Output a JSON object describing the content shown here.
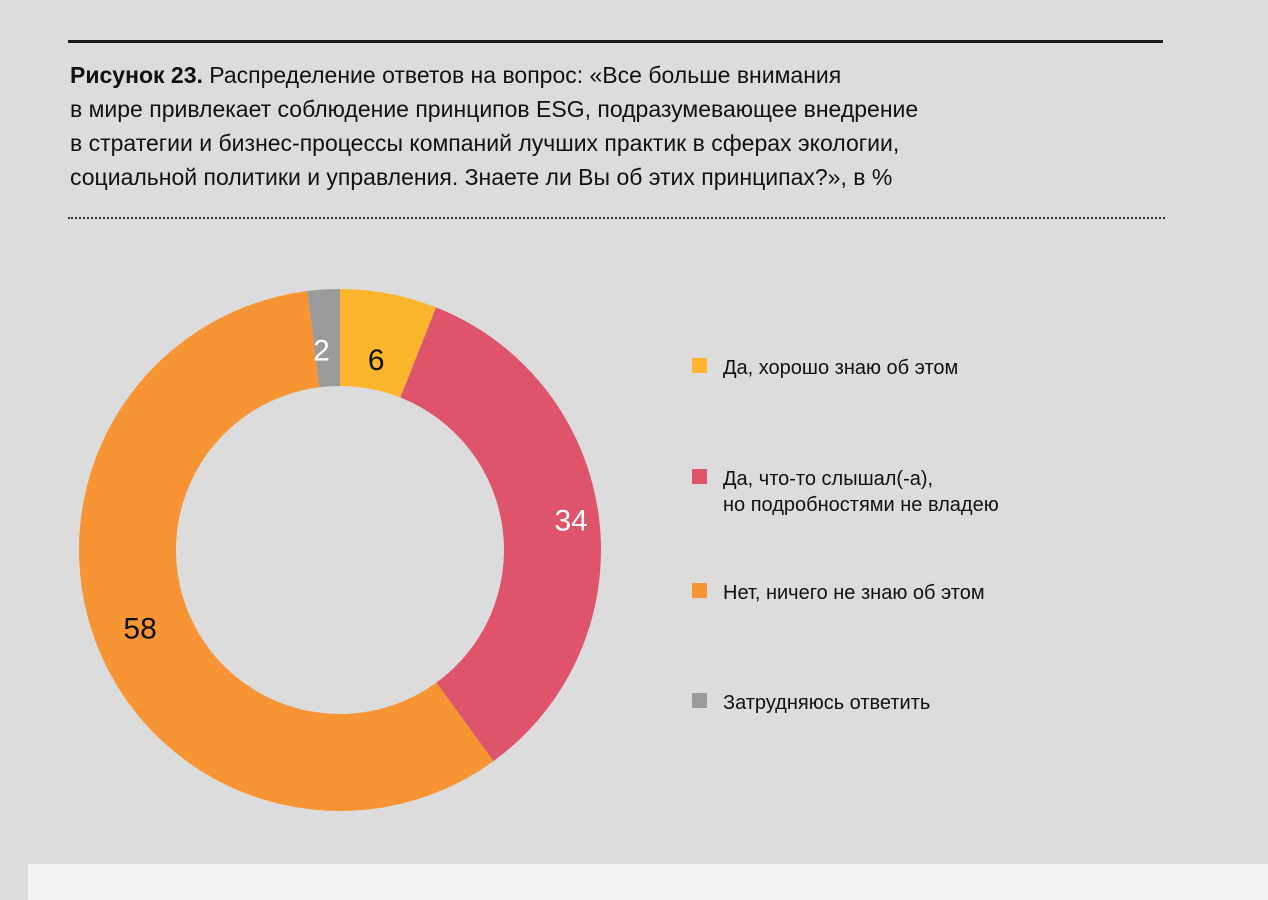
{
  "caption": {
    "lead": "Рисунок 23.",
    "lines": [
      " Распределение ответов на вопрос: «Все больше внимания",
      "в мире привлекает соблюдение принципов ESG, подразумевающее внедрение",
      "в стратегии и бизнес-процессы компаний лучших практик в сферах экологии,",
      "социальной политики и управления. Знаете ли Вы об этих принципах?», в %"
    ]
  },
  "chart_data": {
    "type": "pie",
    "variant": "donut",
    "legend_position": "right",
    "slices": [
      {
        "label": "Да, хорошо знаю об этом",
        "value": 6,
        "color": "#fbb62e",
        "label_color": "#111111"
      },
      {
        "label": "Да, что-то слышал(-а),\nно подробностями не владею",
        "value": 34,
        "color": "#de546b",
        "label_color": "#ffffff"
      },
      {
        "label": "Нет, ничего не знаю об этом",
        "value": 58,
        "color": "#f79433",
        "label_color": "#111111"
      },
      {
        "label": "Затрудняюсь ответить",
        "value": 2,
        "color": "#9b9b9b",
        "label_color": "#ffffff"
      }
    ]
  }
}
